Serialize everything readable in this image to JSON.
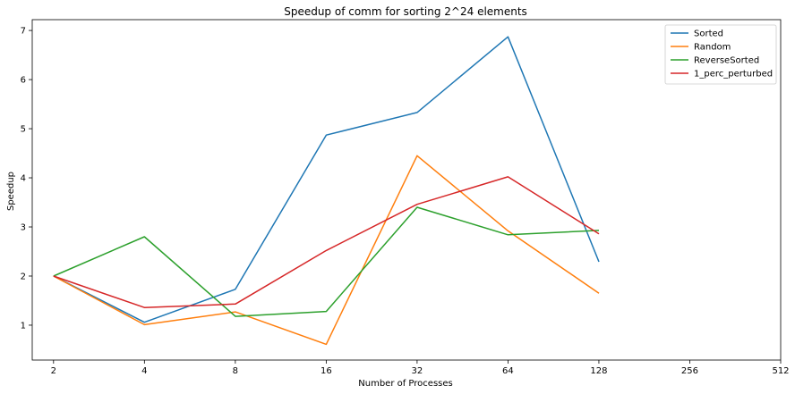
{
  "chart_data": {
    "type": "line",
    "title": "Speedup of comm for sorting 2^24 elements",
    "xlabel": "Number of Processes",
    "ylabel": "Speedup",
    "x_scale": "log2",
    "x_ticks": [
      2,
      4,
      8,
      16,
      32,
      64,
      128,
      256,
      512
    ],
    "xlim": [
      1.7,
      512
    ],
    "y_ticks": [
      1,
      2,
      3,
      4,
      5,
      6,
      7
    ],
    "ylim": [
      0.29,
      7.22
    ],
    "grid": false,
    "legend_position": "top-right",
    "series": [
      {
        "name": "Sorted",
        "color": "#1f77b4",
        "x": [
          2,
          4,
          8,
          16,
          32,
          64,
          128
        ],
        "y": [
          2.0,
          1.06,
          1.73,
          4.87,
          5.33,
          6.87,
          2.29
        ]
      },
      {
        "name": "Random",
        "color": "#ff7f0e",
        "x": [
          2,
          4,
          8,
          16,
          32,
          64,
          128
        ],
        "y": [
          2.0,
          1.01,
          1.27,
          0.61,
          4.45,
          2.92,
          1.65
        ]
      },
      {
        "name": "ReverseSorted",
        "color": "#2ca02c",
        "x": [
          2,
          4,
          8,
          16,
          32,
          64,
          128
        ],
        "y": [
          2.0,
          2.8,
          1.18,
          1.28,
          3.4,
          2.84,
          2.93
        ]
      },
      {
        "name": "1_perc_perturbed",
        "color": "#d62728",
        "x": [
          2,
          4,
          8,
          16,
          32,
          64,
          128
        ],
        "y": [
          2.0,
          1.36,
          1.43,
          2.52,
          3.46,
          4.02,
          2.86
        ]
      }
    ]
  }
}
